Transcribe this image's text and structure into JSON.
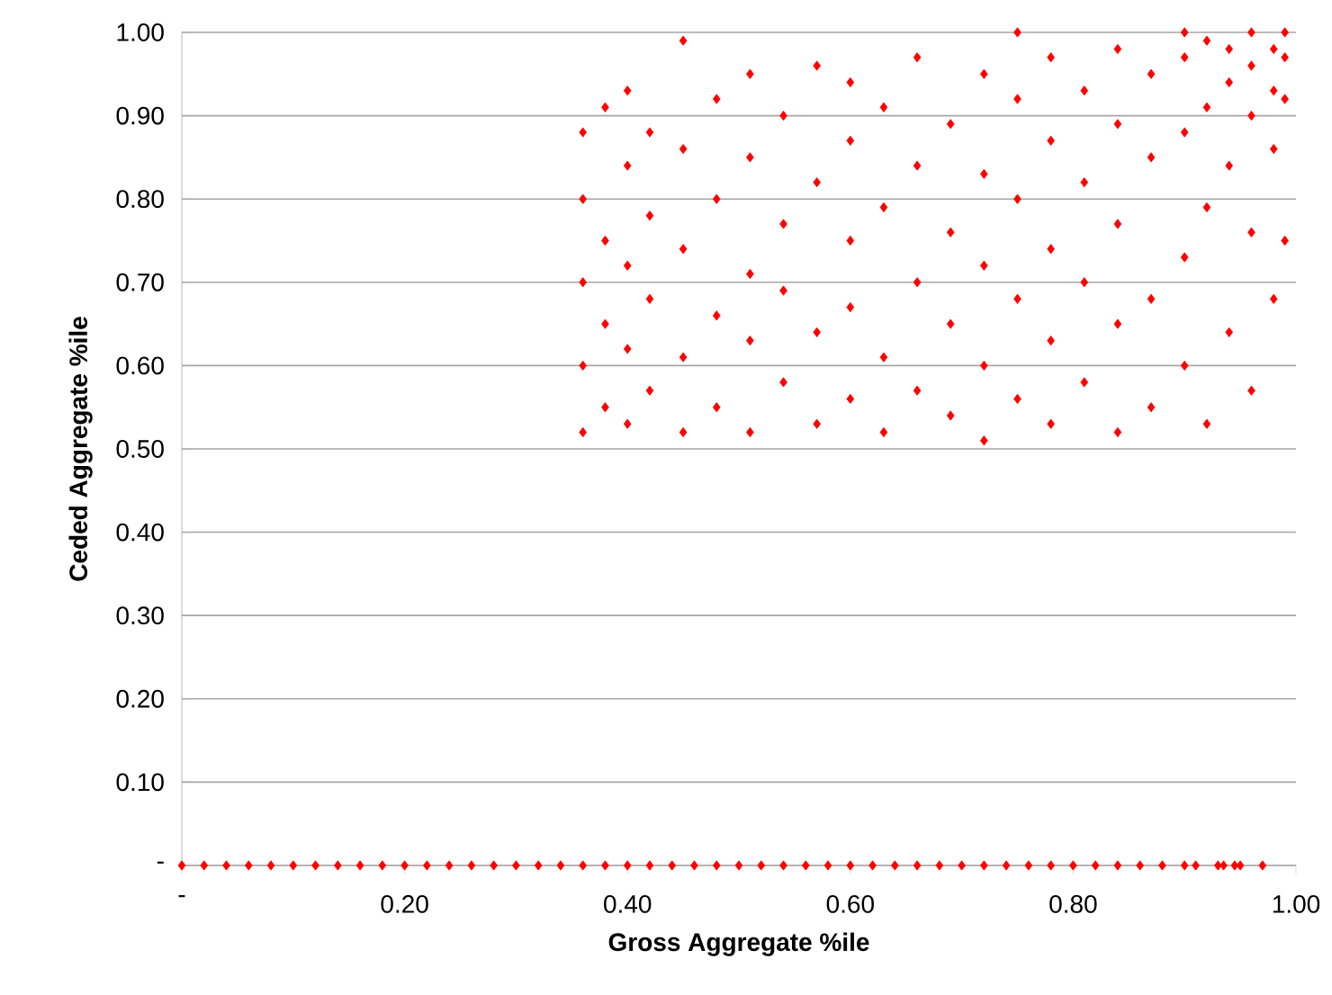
{
  "chart_data": {
    "type": "scatter",
    "xlabel": "Gross Aggregate %ile",
    "ylabel": "Ceded Aggregate %ile",
    "color": "#ff0000",
    "marker": "diamond",
    "grid": "y",
    "xlim": [
      0,
      1
    ],
    "ylim": [
      0,
      1
    ],
    "xticks": [
      {
        "value": 0,
        "label": "-"
      },
      {
        "value": 0.2,
        "label": "0.20"
      },
      {
        "value": 0.4,
        "label": "0.40"
      },
      {
        "value": 0.6,
        "label": "0.60"
      },
      {
        "value": 0.8,
        "label": "0.80"
      },
      {
        "value": 1,
        "label": "1.00"
      }
    ],
    "yticks": [
      {
        "value": 0,
        "label": "-"
      },
      {
        "value": 0.1,
        "label": "0.10"
      },
      {
        "value": 0.2,
        "label": "0.20"
      },
      {
        "value": 0.3,
        "label": "0.30"
      },
      {
        "value": 0.4,
        "label": "0.40"
      },
      {
        "value": 0.5,
        "label": "0.50"
      },
      {
        "value": 0.6,
        "label": "0.60"
      },
      {
        "value": 0.7,
        "label": "0.70"
      },
      {
        "value": 0.8,
        "label": "0.80"
      },
      {
        "value": 0.9,
        "label": "0.90"
      },
      {
        "value": 1,
        "label": "1.00"
      }
    ],
    "x": [
      0,
      0.02,
      0.04,
      0.06,
      0.08,
      0.1,
      0.12,
      0.14,
      0.16,
      0.18,
      0.2,
      0.22,
      0.24,
      0.26,
      0.28,
      0.3,
      0.32,
      0.34,
      0.36,
      0.38,
      0.4,
      0.42,
      0.44,
      0.46,
      0.48,
      0.5,
      0.52,
      0.54,
      0.56,
      0.58,
      0.6,
      0.62,
      0.64,
      0.66,
      0.68,
      0.7,
      0.72,
      0.74,
      0.76,
      0.78,
      0.8,
      0.82,
      0.84,
      0.86,
      0.88,
      0.9,
      0.91,
      0.93,
      0.935,
      0.945,
      0.95,
      0.97,
      0.36,
      0.36,
      0.36,
      0.36,
      0.36,
      0.38,
      0.38,
      0.38,
      0.38,
      0.4,
      0.4,
      0.4,
      0.4,
      0.4,
      0.42,
      0.42,
      0.42,
      0.42,
      0.45,
      0.45,
      0.45,
      0.45,
      0.45,
      0.48,
      0.48,
      0.48,
      0.48,
      0.51,
      0.51,
      0.51,
      0.51,
      0.51,
      0.54,
      0.54,
      0.54,
      0.54,
      0.57,
      0.57,
      0.57,
      0.57,
      0.6,
      0.6,
      0.6,
      0.6,
      0.6,
      0.63,
      0.63,
      0.63,
      0.63,
      0.66,
      0.66,
      0.66,
      0.66,
      0.69,
      0.69,
      0.69,
      0.69,
      0.72,
      0.72,
      0.72,
      0.72,
      0.72,
      0.75,
      0.75,
      0.75,
      0.75,
      0.75,
      0.78,
      0.78,
      0.78,
      0.78,
      0.78,
      0.81,
      0.81,
      0.81,
      0.81,
      0.84,
      0.84,
      0.84,
      0.84,
      0.84,
      0.87,
      0.87,
      0.87,
      0.87,
      0.9,
      0.9,
      0.9,
      0.9,
      0.9,
      0.92,
      0.92,
      0.92,
      0.92,
      0.94,
      0.94,
      0.94,
      0.94,
      0.96,
      0.96,
      0.96,
      0.96,
      0.96,
      0.98,
      0.98,
      0.98,
      0.98,
      0.99,
      0.99,
      0.99,
      0.99
    ],
    "values": [
      0,
      0,
      0,
      0,
      0,
      0,
      0,
      0,
      0,
      0,
      0,
      0,
      0,
      0,
      0,
      0,
      0,
      0,
      0,
      0,
      0,
      0,
      0,
      0,
      0,
      0,
      0,
      0,
      0,
      0,
      0,
      0,
      0,
      0,
      0,
      0,
      0,
      0,
      0,
      0,
      0,
      0,
      0,
      0,
      0,
      0,
      0,
      0,
      0,
      0,
      0,
      0,
      0.52,
      0.6,
      0.7,
      0.8,
      0.88,
      0.55,
      0.65,
      0.75,
      0.91,
      0.53,
      0.62,
      0.72,
      0.84,
      0.93,
      0.57,
      0.68,
      0.78,
      0.88,
      0.52,
      0.61,
      0.74,
      0.86,
      0.99,
      0.55,
      0.66,
      0.8,
      0.92,
      0.52,
      0.63,
      0.71,
      0.85,
      0.95,
      0.58,
      0.69,
      0.77,
      0.9,
      0.53,
      0.64,
      0.82,
      0.96,
      0.56,
      0.67,
      0.75,
      0.87,
      0.94,
      0.52,
      0.61,
      0.79,
      0.91,
      0.57,
      0.7,
      0.84,
      0.97,
      0.54,
      0.65,
      0.76,
      0.89,
      0.51,
      0.6,
      0.72,
      0.83,
      0.95,
      0.56,
      0.68,
      0.8,
      0.92,
      1.0,
      0.53,
      0.63,
      0.74,
      0.87,
      0.97,
      0.58,
      0.7,
      0.82,
      0.93,
      0.52,
      0.65,
      0.77,
      0.89,
      0.98,
      0.55,
      0.68,
      0.85,
      0.95,
      0.6,
      0.73,
      0.88,
      0.97,
      1.0,
      0.53,
      0.79,
      0.91,
      0.99,
      0.64,
      0.84,
      0.94,
      0.98,
      0.57,
      0.76,
      0.9,
      0.96,
      1.0,
      0.68,
      0.86,
      0.93,
      0.98,
      0.75,
      0.92,
      0.97,
      1.0
    ]
  }
}
